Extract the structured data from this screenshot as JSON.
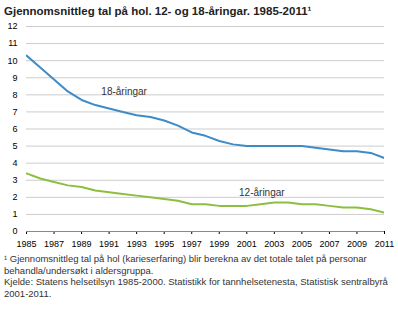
{
  "chart_data": {
    "type": "line",
    "title": "Gjennomsnittleg tal på hol. 12- og 18-åringar. 1985-2011¹",
    "caption": "¹ Gjennomsnittleg tal på hol (karieserfaring) blir berekna av det totale talet på personar behandla/undersøkt i aldersgruppa.",
    "source": "Kjelde: Statens helsetilsyn 1985-2000. Statistikk for tannhelsetenesta, Statistisk sentralbyrå 2001-2011.",
    "x": [
      1985,
      1986,
      1987,
      1988,
      1989,
      1990,
      1991,
      1992,
      1993,
      1994,
      1995,
      1996,
      1997,
      1998,
      1999,
      2000,
      2001,
      2002,
      2003,
      2004,
      2005,
      2006,
      2007,
      2008,
      2009,
      2010,
      2011
    ],
    "series": [
      {
        "name": "18-åringar",
        "color": "#3d8bc7",
        "values": [
          10.3,
          9.6,
          8.9,
          8.2,
          7.7,
          7.4,
          7.2,
          7.0,
          6.8,
          6.7,
          6.5,
          6.2,
          5.8,
          5.6,
          5.3,
          5.1,
          5.0,
          5.0,
          5.0,
          5.0,
          5.0,
          4.9,
          4.8,
          4.7,
          4.7,
          4.6,
          4.3
        ]
      },
      {
        "name": "12-åringar",
        "color": "#8cbf3f",
        "values": [
          3.4,
          3.1,
          2.9,
          2.7,
          2.6,
          2.4,
          2.3,
          2.2,
          2.1,
          2.0,
          1.9,
          1.8,
          1.6,
          1.6,
          1.5,
          1.5,
          1.5,
          1.6,
          1.7,
          1.7,
          1.6,
          1.6,
          1.5,
          1.4,
          1.4,
          1.3,
          1.1
        ]
      }
    ],
    "xlim": [
      1985,
      2011
    ],
    "xticks": [
      1985,
      1987,
      1989,
      1991,
      1993,
      1995,
      1997,
      1999,
      2001,
      2003,
      2005,
      2007,
      2009,
      2011
    ],
    "ylim": [
      0,
      12
    ],
    "yticks": [
      0,
      1,
      2,
      3,
      4,
      5,
      6,
      7,
      8,
      9,
      10,
      11,
      12
    ],
    "grid": true
  }
}
